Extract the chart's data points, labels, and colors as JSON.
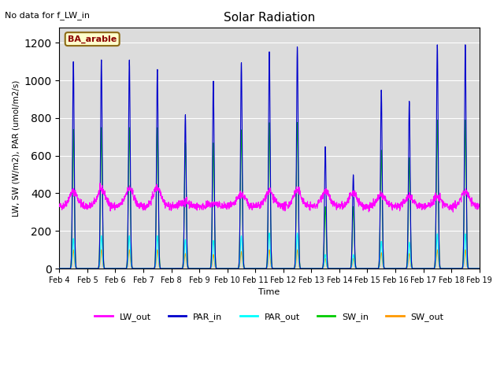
{
  "title": "Solar Radiation",
  "note": "No data for f_LW_in",
  "site_label": "BA_arable",
  "ylabel": "LW, SW (W/m2), PAR (umol/m2/s)",
  "xlabel": "Time",
  "ylim": [
    0,
    1280
  ],
  "yticks": [
    0,
    200,
    400,
    600,
    800,
    1000,
    1200
  ],
  "colors": {
    "LW_out": "#ff00ff",
    "PAR_in": "#0000cc",
    "PAR_out": "#00ffff",
    "SW_in": "#00cc00",
    "SW_out": "#ff9900"
  },
  "background_color": "#dcdcdc",
  "fig_background": "#ffffff",
  "n_days": 15,
  "par_in_peaks": [
    1100,
    1110,
    1110,
    1060,
    820,
    1000,
    1100,
    1160,
    1185,
    650,
    500,
    950,
    890,
    1190,
    1190
  ],
  "sw_in_peaks": [
    740,
    750,
    750,
    750,
    670,
    670,
    740,
    780,
    780,
    330,
    330,
    630,
    590,
    790,
    790
  ],
  "sw_out_peaks": [
    100,
    100,
    100,
    100,
    80,
    75,
    90,
    100,
    100,
    55,
    55,
    85,
    80,
    100,
    100
  ],
  "par_out_peaks": [
    160,
    175,
    175,
    175,
    155,
    150,
    175,
    190,
    190,
    75,
    75,
    145,
    140,
    185,
    185
  ],
  "lw_out_base": 330,
  "lw_out_peaks": [
    410,
    420,
    425,
    430,
    355,
    345,
    395,
    410,
    415,
    410,
    400,
    390,
    385,
    380,
    410
  ],
  "x_tick_labels": [
    "Feb 4",
    "Feb 5",
    "Feb 6",
    "Feb 7",
    "Feb 8",
    "Feb 9",
    "Feb 10",
    "Feb 11",
    "Feb 12",
    "Feb 13",
    "Feb 14",
    "Feb 15",
    "Feb 16",
    "Feb 17",
    "Feb 18",
    "Feb 19"
  ]
}
